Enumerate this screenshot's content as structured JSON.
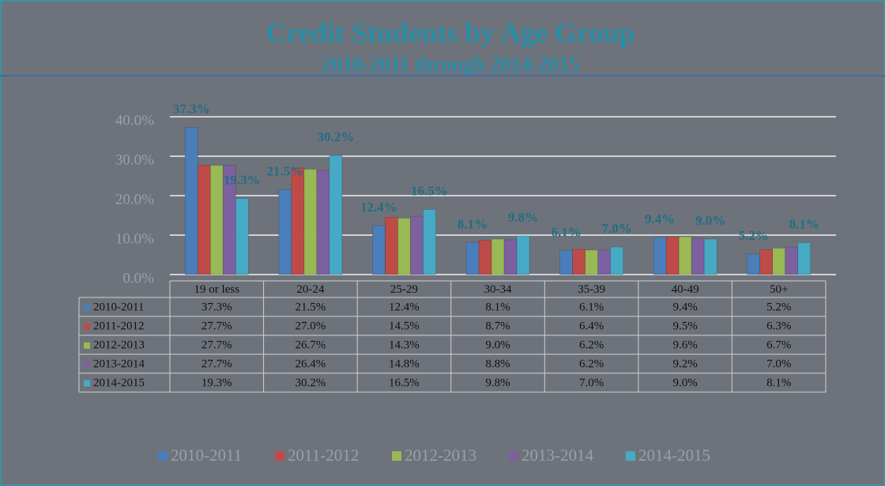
{
  "chart_data": {
    "type": "bar",
    "title": "Credit Students by Age Group",
    "subtitle": "2010-2011 through 2014-2015",
    "categories": [
      "19 or less",
      "20-24",
      "25-29",
      "30-34",
      "35-39",
      "40-49",
      "50+"
    ],
    "series": [
      {
        "name": "2010-2011",
        "color": "#4a7ebb",
        "values": [
          37.3,
          21.5,
          12.4,
          8.1,
          6.1,
          9.4,
          5.2
        ],
        "value_labels": [
          "37.3%",
          "21.5%",
          "12.4%",
          "8.1%",
          "6.1%",
          "9.4%",
          "5.2%"
        ]
      },
      {
        "name": "2011-2012",
        "color": "#be4b48",
        "values": [
          27.7,
          27.0,
          14.5,
          8.7,
          6.4,
          9.5,
          6.3
        ],
        "value_labels": [
          "27.7%",
          "27.0%",
          "14.5%",
          "8.7%",
          "6.4%",
          "9.5%",
          "6.3%"
        ]
      },
      {
        "name": "2012-2013",
        "color": "#98b954",
        "values": [
          27.7,
          26.7,
          14.3,
          9.0,
          6.2,
          9.6,
          6.7
        ],
        "value_labels": [
          "27.7%",
          "26.7%",
          "14.3%",
          "9.0%",
          "6.2%",
          "9.6%",
          "6.7%"
        ]
      },
      {
        "name": "2013-2014",
        "color": "#7d60a0",
        "values": [
          27.7,
          26.4,
          14.8,
          8.8,
          6.2,
          9.2,
          7.0
        ],
        "value_labels": [
          "27.7%",
          "26.4%",
          "14.8%",
          "8.8%",
          "6.2%",
          "9.2%",
          "7.0%"
        ]
      },
      {
        "name": "2014-2015",
        "color": "#46aac5",
        "values": [
          19.3,
          30.2,
          16.5,
          9.8,
          7.0,
          9.0,
          8.1
        ],
        "value_labels": [
          "19.3%",
          "30.2%",
          "16.5%",
          "9.8%",
          "7.0%",
          "9.0%",
          "8.1%"
        ]
      }
    ],
    "labeled_series": [
      0,
      4
    ],
    "ylim": [
      0,
      40
    ],
    "yticks": [
      {
        "value": 0,
        "label": "0.0%"
      },
      {
        "value": 10,
        "label": "10.0%"
      },
      {
        "value": 20,
        "label": "20.0%"
      },
      {
        "value": 30,
        "label": "30.0%"
      },
      {
        "value": 40,
        "label": "40.0%"
      }
    ],
    "grid": true,
    "legend": "bottom"
  }
}
